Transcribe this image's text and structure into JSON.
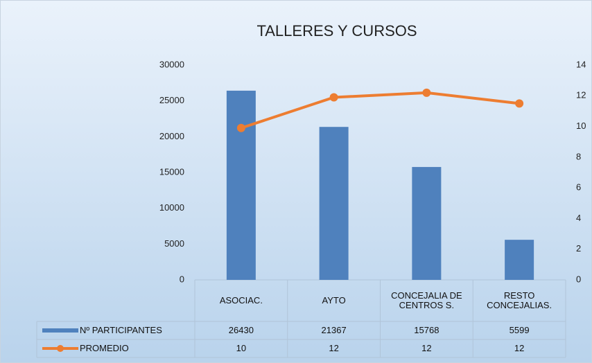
{
  "chart_data": {
    "type": "bar_line",
    "title": "TALLERES Y CURSOS",
    "categories": [
      "ASOCIAC.",
      "AYTO",
      "CONCEJALIA DE CENTROS S.",
      "RESTO CONCEJALIAS."
    ],
    "series": [
      {
        "name": "Nº PARTICIPANTES",
        "type": "bar",
        "color": "#4f81bd",
        "values": [
          26430,
          21367,
          15768,
          5599
        ]
      },
      {
        "name": "PROMEDIO",
        "type": "line",
        "axis": "y2",
        "color": "#ed7d31",
        "values": [
          9.9,
          11.9,
          12.2,
          11.5
        ],
        "value_labels": [
          "10",
          "12",
          "12",
          "12"
        ]
      }
    ],
    "ylim": [
      0,
      30000
    ],
    "yticks": [
      0,
      5000,
      10000,
      15000,
      20000,
      25000,
      30000
    ],
    "y2lim": [
      0,
      14
    ],
    "y2ticks": [
      0,
      2,
      4,
      6,
      8,
      10,
      12,
      14
    ],
    "data_table": true
  }
}
